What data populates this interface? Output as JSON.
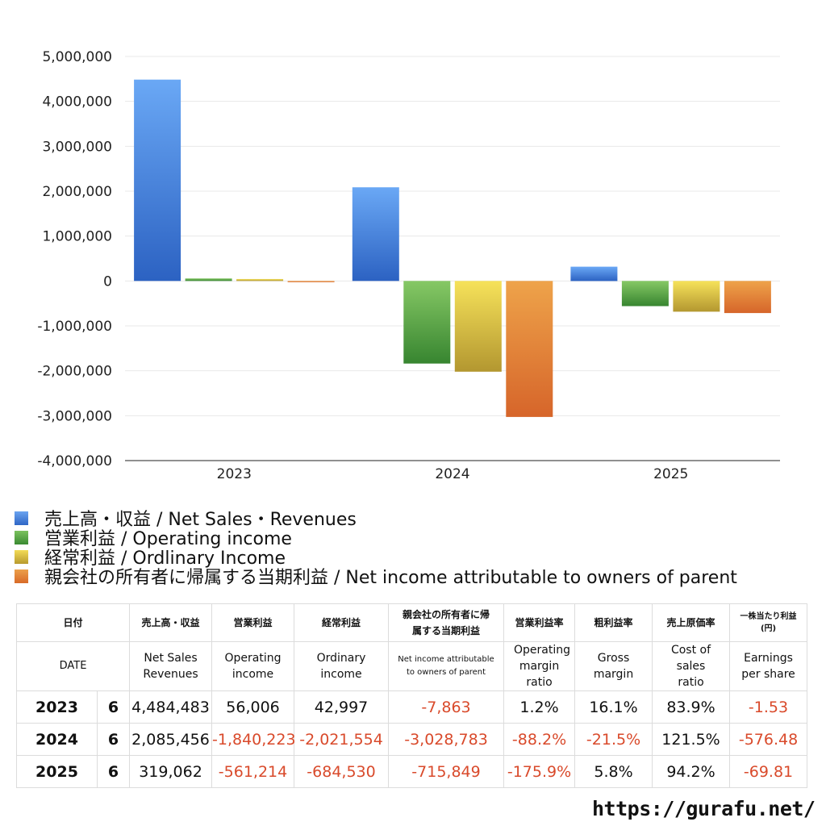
{
  "chart_data": {
    "type": "bar",
    "categories": [
      "2023",
      "2024",
      "2025"
    ],
    "series": [
      {
        "name": "売上高・収益 / Net Sales・Revenues",
        "color": "#3d7fdf",
        "values": [
          4484483,
          2085456,
          319062
        ]
      },
      {
        "name": "営業利益 / Operating income",
        "color": "#4c9e3c",
        "values": [
          56006,
          -1840223,
          -561214
        ]
      },
      {
        "name": "経常利益 / Ordlinary Income",
        "color": "#d8c23e",
        "values": [
          42997,
          -2021554,
          -684530
        ]
      },
      {
        "name": "親会社の所有者に帰属する当期利益 / Net income attributable to owners of parent",
        "color": "#e07a2c",
        "values": [
          -7863,
          -3028783,
          -715849
        ]
      }
    ],
    "ylim": [
      -4000000,
      5000000
    ],
    "yticks": [
      5000000,
      4000000,
      3000000,
      2000000,
      1000000,
      0,
      -1000000,
      -2000000,
      -3000000,
      -4000000
    ],
    "ytick_labels": [
      "5,000,000",
      "4,000,000",
      "3,000,000",
      "2,000,000",
      "1,000,000",
      "0",
      "-1,000,000",
      "-2,000,000",
      "-3,000,000",
      "-4,000,000"
    ],
    "grid": true,
    "legend": "bottom"
  },
  "table": {
    "header_ja": [
      "日付",
      "売上高・収益",
      "営業利益",
      "経常利益",
      "親会社の所有者に帰属する当期利益",
      "営業利益率",
      "粗利益率",
      "売上原価率",
      "一株当たり利益(円)"
    ],
    "header_en": [
      "DATE",
      "Net Sales Revenues",
      "Operating income",
      "Ordinary income",
      "Net income attributable to owners of parent",
      "Operating margin ratio",
      "Gross margin",
      "Cost of sales ratio",
      "Earnings per share"
    ],
    "rows": [
      {
        "year": "2023",
        "month": "6",
        "cells": [
          "4,484,483",
          "56,006",
          "42,997",
          "-7,863",
          "1.2%",
          "16.1%",
          "83.9%",
          "-1.53"
        ]
      },
      {
        "year": "2024",
        "month": "6",
        "cells": [
          "2,085,456",
          "-1,840,223",
          "-2,021,554",
          "-3,028,783",
          "-88.2%",
          "-21.5%",
          "121.5%",
          "-576.48"
        ]
      },
      {
        "year": "2025",
        "month": "6",
        "cells": [
          "319,062",
          "-561,214",
          "-684,530",
          "-715,849",
          "-175.9%",
          "5.8%",
          "94.2%",
          "-69.81"
        ]
      }
    ]
  },
  "footer": {
    "url": "https://gurafu.net/"
  }
}
